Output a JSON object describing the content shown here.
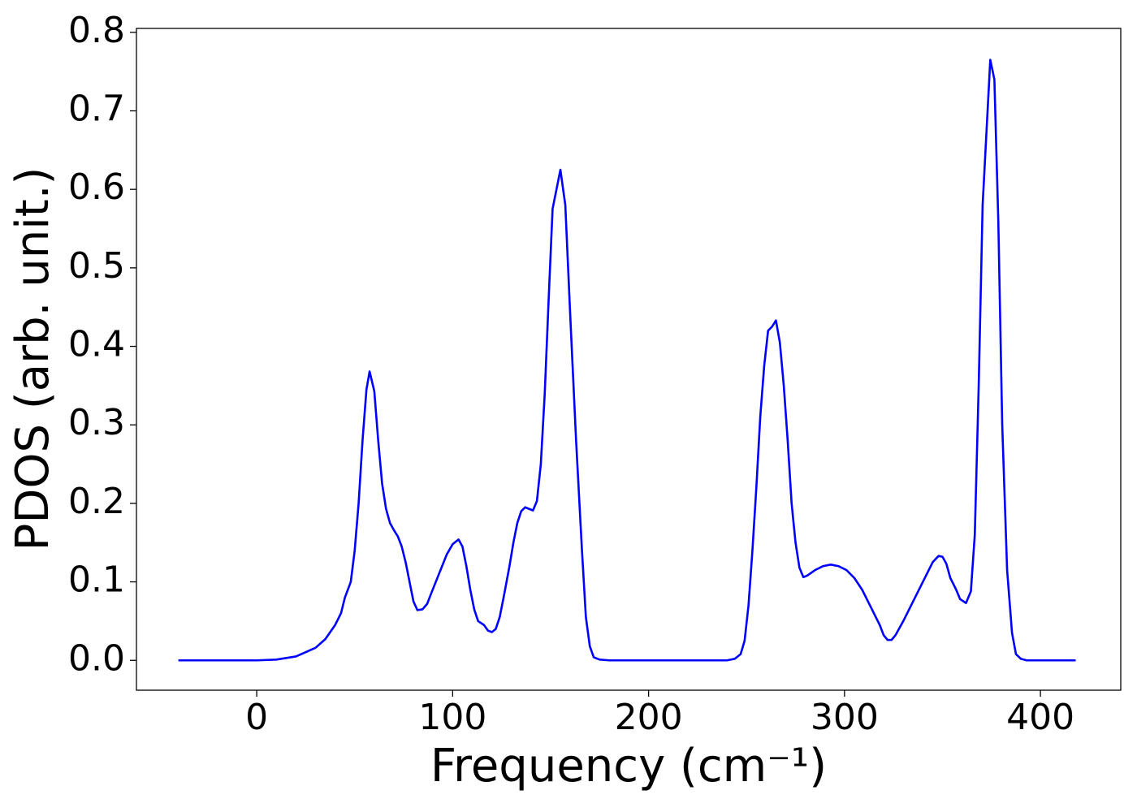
{
  "chart_data": {
    "type": "line",
    "xlabel": "Frequency (cm⁻¹)",
    "ylabel": "PDOS (arb. unit.)",
    "xlim": [
      -61.4,
      441
    ],
    "ylim": [
      -0.038,
      0.805
    ],
    "xticks": [
      0,
      100,
      200,
      300,
      400
    ],
    "yticks": [
      {
        "value": 0,
        "label": "0.0"
      },
      0.1,
      0.2,
      0.3,
      0.4,
      0.5,
      0.6,
      0.7,
      0.8
    ],
    "series": [
      {
        "color": "#0000ff",
        "x": [
          -40,
          0,
          10,
          20,
          30,
          35,
          40,
          43,
          45,
          48,
          50,
          52,
          54,
          56,
          57.6,
          60,
          62,
          64,
          66,
          68,
          70,
          72,
          74,
          76,
          78,
          80,
          82,
          84.6,
          87,
          89,
          93,
          97,
          100,
          103,
          105,
          107,
          109,
          111,
          113,
          116,
          118,
          120,
          122,
          124,
          126,
          129,
          131,
          133,
          135,
          137,
          141,
          143,
          145,
          147,
          149,
          151,
          155,
          157.5,
          160,
          163,
          166,
          168,
          170,
          172,
          175,
          180,
          240,
          244,
          247,
          249,
          251,
          253,
          255,
          257,
          259,
          261,
          263,
          265,
          267,
          269,
          271,
          273,
          275,
          277,
          279,
          281,
          285,
          289,
          293,
          297,
          301,
          305,
          309,
          313,
          318,
          320,
          322,
          324,
          326,
          330,
          334,
          340,
          345,
          348,
          350,
          352,
          354,
          357,
          359,
          362,
          364.5,
          366.5,
          368.5,
          370.5,
          374.4,
          376.5,
          378.5,
          380.5,
          383,
          385.5,
          387.5,
          390,
          393,
          418
        ],
        "values": [
          0,
          0,
          0.001,
          0.005,
          0.016,
          0.027,
          0.045,
          0.06,
          0.08,
          0.1,
          0.14,
          0.2,
          0.28,
          0.345,
          0.368,
          0.343,
          0.28,
          0.225,
          0.193,
          0.175,
          0.166,
          0.158,
          0.145,
          0.125,
          0.1,
          0.075,
          0.064,
          0.065,
          0.072,
          0.085,
          0.11,
          0.135,
          0.148,
          0.154,
          0.145,
          0.12,
          0.09,
          0.065,
          0.05,
          0.045,
          0.038,
          0.036,
          0.04,
          0.055,
          0.08,
          0.12,
          0.15,
          0.175,
          0.19,
          0.195,
          0.191,
          0.203,
          0.25,
          0.34,
          0.46,
          0.575,
          0.625,
          0.58,
          0.44,
          0.28,
          0.14,
          0.055,
          0.018,
          0.004,
          0.001,
          0,
          0,
          0.002,
          0.008,
          0.025,
          0.07,
          0.14,
          0.22,
          0.31,
          0.375,
          0.42,
          0.425,
          0.433,
          0.405,
          0.35,
          0.28,
          0.2,
          0.15,
          0.118,
          0.106,
          0.108,
          0.115,
          0.12,
          0.122,
          0.12,
          0.115,
          0.105,
          0.09,
          0.07,
          0.045,
          0.032,
          0.026,
          0.026,
          0.032,
          0.05,
          0.07,
          0.1,
          0.125,
          0.133,
          0.132,
          0.123,
          0.105,
          0.09,
          0.078,
          0.073,
          0.088,
          0.16,
          0.35,
          0.58,
          0.765,
          0.74,
          0.56,
          0.3,
          0.115,
          0.035,
          0.008,
          0.002,
          0,
          0
        ]
      }
    ]
  }
}
